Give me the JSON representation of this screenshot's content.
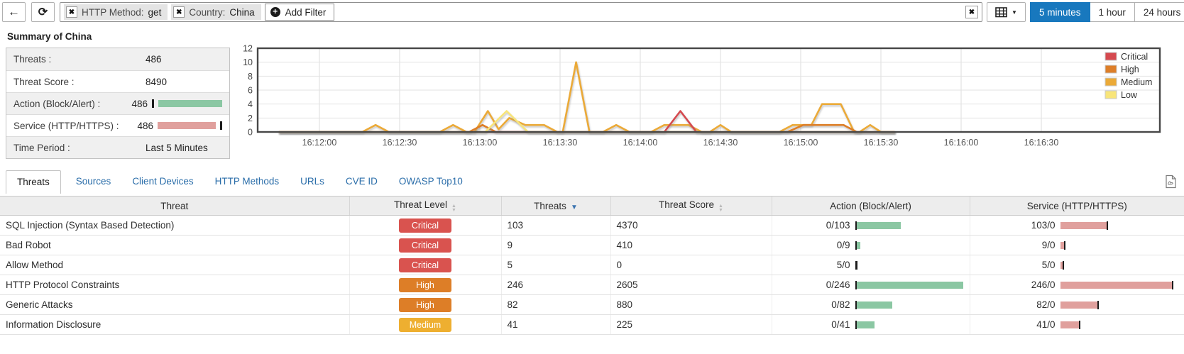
{
  "toolbar": {
    "back_icon": "←",
    "refresh_icon": "⟳",
    "filters": [
      {
        "label": "HTTP Method:",
        "value": "get"
      },
      {
        "label": "Country:",
        "value": "China"
      }
    ],
    "add_filter_label": "Add Filter",
    "close_icon": "✖",
    "time_ranges": [
      {
        "label": "5 minutes",
        "active": true
      },
      {
        "label": "1 hour",
        "active": false
      },
      {
        "label": "24 hours",
        "active": false
      }
    ],
    "accent_color": "#1878be"
  },
  "summary": {
    "title": "Summary of China",
    "rows": [
      {
        "label": "Threats :",
        "value": "486"
      },
      {
        "label": "Threat Score :",
        "value": "8490"
      },
      {
        "label": "Action (Block/Alert) :",
        "value": "486",
        "bar": {
          "kind": "action",
          "block": 0,
          "alert": 486,
          "max": 486
        }
      },
      {
        "label": "Service (HTTP/HTTPS) :",
        "value": "486",
        "bar": {
          "kind": "service",
          "http": 486,
          "https": 0,
          "max": 486
        }
      },
      {
        "label": "Time Period :",
        "value": "Last 5 Minutes"
      }
    ]
  },
  "chart_data": {
    "type": "line",
    "title": "",
    "ylabel": "",
    "xlabel": "",
    "ylim": [
      0,
      12
    ],
    "yticks": [
      0,
      2,
      4,
      6,
      8,
      10,
      12
    ],
    "xticklabels": [
      "16:12:00",
      "16:12:30",
      "16:13:00",
      "16:13:30",
      "16:14:00",
      "16:14:30",
      "16:15:00",
      "16:15:30",
      "16:16:00",
      "16:16:30"
    ],
    "grid": true,
    "legend_position": "top-right",
    "legend": [
      "Critical",
      "High",
      "Medium",
      "Low"
    ],
    "colors": {
      "Critical": "#d5494f",
      "High": "#dd7e28",
      "Medium": "#ebaa38",
      "Low": "#f8e57a"
    },
    "draw_order": [
      "Medium",
      "High",
      "Critical",
      "Low"
    ],
    "x_unit": "seconds after 16:12:00, data range 16:11:45 - 16:15:40",
    "series": [
      {
        "name": "Critical",
        "points": [
          [
            -15,
            0
          ],
          [
            129,
            0
          ],
          [
            135,
            3
          ],
          [
            141,
            0
          ],
          [
            215,
            0
          ]
        ]
      },
      {
        "name": "High",
        "points": [
          [
            -15,
            0
          ],
          [
            56,
            0
          ],
          [
            61,
            1
          ],
          [
            66,
            0
          ],
          [
            175,
            0
          ],
          [
            181,
            1
          ],
          [
            196,
            1
          ],
          [
            201,
            0
          ],
          [
            215,
            0
          ]
        ]
      },
      {
        "name": "Medium",
        "points": [
          [
            -15,
            0
          ],
          [
            16,
            0
          ],
          [
            21,
            1
          ],
          [
            26,
            0
          ],
          [
            45,
            0
          ],
          [
            50,
            1
          ],
          [
            55,
            0
          ],
          [
            58,
            0
          ],
          [
            63,
            3
          ],
          [
            67,
            0.4
          ],
          [
            71,
            2
          ],
          [
            77,
            1
          ],
          [
            84,
            1
          ],
          [
            89,
            0
          ],
          [
            91,
            0
          ],
          [
            96,
            10
          ],
          [
            101,
            0
          ],
          [
            106,
            0
          ],
          [
            111,
            1
          ],
          [
            116,
            0
          ],
          [
            124,
            0
          ],
          [
            129,
            1
          ],
          [
            138,
            1
          ],
          [
            143,
            0
          ],
          [
            146,
            0
          ],
          [
            150,
            1
          ],
          [
            154,
            0
          ],
          [
            172,
            0
          ],
          [
            177,
            1
          ],
          [
            184,
            1
          ],
          [
            188,
            4
          ],
          [
            195,
            4
          ],
          [
            200,
            0
          ],
          [
            202,
            0
          ],
          [
            206,
            1
          ],
          [
            210,
            0
          ],
          [
            215,
            0
          ]
        ]
      },
      {
        "name": "Low",
        "points": [
          [
            -15,
            0
          ],
          [
            62,
            0
          ],
          [
            70,
            3
          ],
          [
            78,
            0
          ],
          [
            215,
            0
          ]
        ]
      }
    ]
  },
  "tabs": {
    "items": [
      "Threats",
      "Sources",
      "Client Devices",
      "HTTP Methods",
      "URLs",
      "CVE ID",
      "OWASP Top10"
    ],
    "active_index": 0,
    "pdf_icon": "pdf-export-icon"
  },
  "table": {
    "columns": [
      {
        "label": "Threat",
        "sort": "none"
      },
      {
        "label": "Threat Level",
        "sort": "inactive"
      },
      {
        "label": "Threats",
        "sort": "desc"
      },
      {
        "label": "Threat Score",
        "sort": "inactive"
      },
      {
        "label": "Action (Block/Alert)",
        "sort": "none"
      },
      {
        "label": "Service (HTTP/HTTPS)",
        "sort": "none"
      }
    ],
    "level_colors": {
      "Critical": "#d9534f",
      "High": "#dd7e27",
      "Medium": "#eeaf30",
      "Low": "#f7e35c"
    },
    "bar_colors": {
      "action_alert": "#8bc7a3",
      "service_http": "#e0a09d",
      "zero_tick": "#1c1c1c"
    },
    "bar_max": 246,
    "rows": [
      {
        "threat": "SQL Injection (Syntax Based Detection)",
        "level": "Critical",
        "threats": "103",
        "score": "4370",
        "action": "0/103",
        "service": "103/0"
      },
      {
        "threat": "Bad Robot",
        "level": "Critical",
        "threats": "9",
        "score": "410",
        "action": "0/9",
        "service": "9/0"
      },
      {
        "threat": "Allow Method",
        "level": "Critical",
        "threats": "5",
        "score": "0",
        "action": "5/0",
        "service": "5/0"
      },
      {
        "threat": "HTTP Protocol Constraints",
        "level": "High",
        "threats": "246",
        "score": "2605",
        "action": "0/246",
        "service": "246/0"
      },
      {
        "threat": "Generic Attacks",
        "level": "High",
        "threats": "82",
        "score": "880",
        "action": "0/82",
        "service": "82/0"
      },
      {
        "threat": "Information Disclosure",
        "level": "Medium",
        "threats": "41",
        "score": "225",
        "action": "0/41",
        "service": "41/0"
      }
    ]
  }
}
